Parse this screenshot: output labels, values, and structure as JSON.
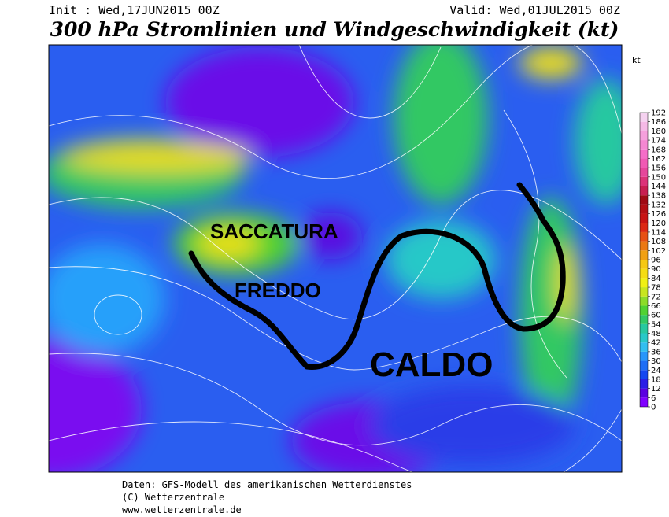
{
  "header": {
    "init": "Init : Wed,17JUN2015 00Z",
    "valid": "Valid: Wed,01JUL2015 00Z",
    "title": "300 hPa Stromlinien und Windgeschwindigkeit (kt)"
  },
  "annotations": {
    "trough": "SACCATURA",
    "cold": "FREDDO",
    "warm": "CALDO"
  },
  "legend": {
    "unit": "kt",
    "ticks": [
      0,
      6,
      12,
      18,
      24,
      30,
      36,
      42,
      48,
      54,
      60,
      66,
      72,
      78,
      84,
      90,
      96,
      102,
      108,
      114,
      120,
      126,
      132,
      138,
      144,
      150,
      156,
      162,
      168,
      174,
      180,
      186,
      192
    ],
    "colors": [
      "#8000ff",
      "#5a00e0",
      "#2a1ee6",
      "#1446f0",
      "#1e6ef5",
      "#2896fa",
      "#32bef0",
      "#28c8c8",
      "#28c8a0",
      "#32c864",
      "#50d232",
      "#8cdc28",
      "#c8e61e",
      "#f0f014",
      "#f5dc14",
      "#f5c814",
      "#f0a014",
      "#eb7814",
      "#e65014",
      "#dc2814",
      "#c81414",
      "#b40f14",
      "#a00a14",
      "#c81e50",
      "#dc3278",
      "#e6469b",
      "#f05ab4",
      "#f56ec8",
      "#f587d2",
      "#f5a0dc",
      "#f5b9e6",
      "#f5d2f0"
    ]
  },
  "footer": {
    "source": "Daten: GFS-Modell des amerikanischen Wetterdienstes",
    "copyright": "(C) Wetterzentrale",
    "url": "www.wetterzentrale.de"
  }
}
